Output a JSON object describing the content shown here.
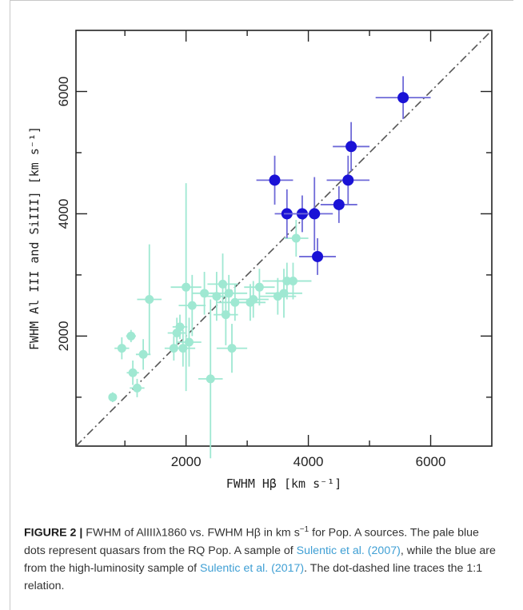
{
  "chart_data": {
    "type": "scatter",
    "xlabel": "FWHM Hβ [km s⁻¹]",
    "ylabel": "FWHM Al III and SiIII] [km s⁻¹]",
    "xlim": [
      200,
      7000
    ],
    "ylim": [
      200,
      7000
    ],
    "x_ticks": [
      "2000",
      "4000",
      "6000"
    ],
    "y_ticks": [
      "2000",
      "4000",
      "6000"
    ],
    "reference_line": "1:1",
    "colors": {
      "pale": "#9fe8d2",
      "blue": "#1a12d6",
      "blue_err": "#6f6ad8",
      "line": "#555555"
    },
    "series": [
      {
        "points": [
          {
            "x": 800,
            "y": 1000,
            "xerr": 60,
            "yerr": 80
          },
          {
            "x": 950,
            "y": 1800,
            "xerr": 120,
            "yerr": 180
          },
          {
            "x": 1100,
            "y": 2000,
            "xerr": 80,
            "yerr": 100
          },
          {
            "x": 1130,
            "y": 1400,
            "xerr": 100,
            "yerr": 200
          },
          {
            "x": 1200,
            "y": 1150,
            "xerr": 120,
            "yerr": 150
          },
          {
            "x": 1300,
            "y": 1700,
            "xerr": 120,
            "yerr": 250
          },
          {
            "x": 1400,
            "y": 2600,
            "xerr": 200,
            "yerr": 900
          },
          {
            "x": 1800,
            "y": 1800,
            "xerr": 150,
            "yerr": 200
          },
          {
            "x": 1850,
            "y": 2050,
            "xerr": 150,
            "yerr": 250
          },
          {
            "x": 1900,
            "y": 2150,
            "xerr": 120,
            "yerr": 200
          },
          {
            "x": 1950,
            "y": 1800,
            "xerr": 200,
            "yerr": 300
          },
          {
            "x": 2000,
            "y": 2800,
            "xerr": 250,
            "yerr": 1700
          },
          {
            "x": 2050,
            "y": 1900,
            "xerr": 200,
            "yerr": 400
          },
          {
            "x": 2100,
            "y": 2500,
            "xerr": 220,
            "yerr": 500
          },
          {
            "x": 2300,
            "y": 2700,
            "xerr": 200,
            "yerr": 350
          },
          {
            "x": 2400,
            "y": 1300,
            "xerr": 200,
            "yerr": 1300
          },
          {
            "x": 2500,
            "y": 2650,
            "xerr": 250,
            "yerr": 400
          },
          {
            "x": 2600,
            "y": 2850,
            "xerr": 250,
            "yerr": 500
          },
          {
            "x": 2650,
            "y": 2350,
            "xerr": 200,
            "yerr": 500
          },
          {
            "x": 2700,
            "y": 2700,
            "xerr": 300,
            "yerr": 300
          },
          {
            "x": 2750,
            "y": 1800,
            "xerr": 250,
            "yerr": 400
          },
          {
            "x": 2800,
            "y": 2550,
            "xerr": 300,
            "yerr": 300
          },
          {
            "x": 3050,
            "y": 2550,
            "xerr": 250,
            "yerr": 300
          },
          {
            "x": 3100,
            "y": 2600,
            "xerr": 250,
            "yerr": 300
          },
          {
            "x": 3200,
            "y": 2800,
            "xerr": 250,
            "yerr": 300
          },
          {
            "x": 3500,
            "y": 2650,
            "xerr": 300,
            "yerr": 300
          },
          {
            "x": 3600,
            "y": 2700,
            "xerr": 300,
            "yerr": 400
          },
          {
            "x": 3650,
            "y": 2900,
            "xerr": 400,
            "yerr": 300
          },
          {
            "x": 3750,
            "y": 2900,
            "xerr": 300,
            "yerr": 300
          },
          {
            "x": 3800,
            "y": 3600,
            "xerr": 200,
            "yerr": 300
          }
        ]
      },
      {
        "points": [
          {
            "x": 3450,
            "y": 4550,
            "xerr": 300,
            "yerr": 400
          },
          {
            "x": 3650,
            "y": 4000,
            "xerr": 200,
            "yerr": 400
          },
          {
            "x": 3900,
            "y": 4000,
            "xerr": 300,
            "yerr": 300
          },
          {
            "x": 4100,
            "y": 4000,
            "xerr": 300,
            "yerr": 600
          },
          {
            "x": 4150,
            "y": 3300,
            "xerr": 300,
            "yerr": 300
          },
          {
            "x": 4500,
            "y": 4150,
            "xerr": 300,
            "yerr": 300
          },
          {
            "x": 4650,
            "y": 4550,
            "xerr": 350,
            "yerr": 400
          },
          {
            "x": 4700,
            "y": 5100,
            "xerr": 300,
            "yerr": 400
          },
          {
            "x": 5550,
            "y": 5900,
            "xerr": 450,
            "yerr": 350
          }
        ]
      }
    ]
  },
  "caption": {
    "label": "FIGURE 2 |",
    "line1": " FWHM of AlIIIλ1860 vs. FWHM Hβ in km s",
    "line1_sup": "−1",
    "line1_end": " for Pop. A sources.",
    "line2": "The pale blue dots represent quasars from the RQ Pop. A sample of ",
    "ref1a": "Sulentic",
    "ref1b": "et al. (2007)",
    "line3": ", while the blue are from the high-luminosity sample of ",
    "ref2a": "Sulentic",
    "ref2b": "et al. (2017)",
    "line4": ". The dot-dashed line traces the 1:1 relation."
  }
}
